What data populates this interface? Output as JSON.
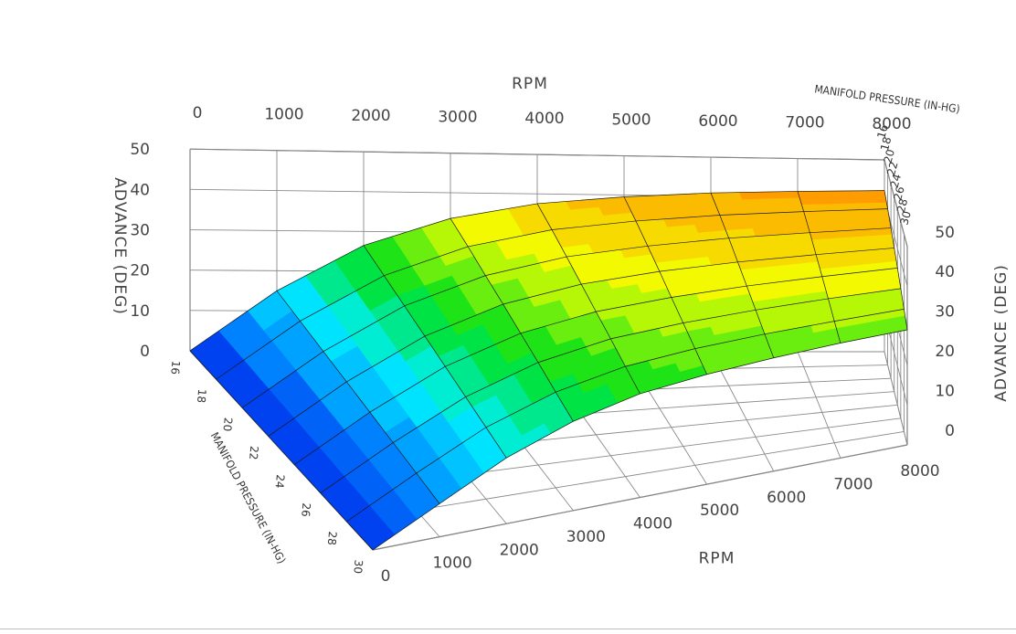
{
  "chart_data": {
    "type": "surface3d",
    "x": {
      "label": "RPM",
      "values": [
        0,
        1000,
        2000,
        3000,
        4000,
        5000,
        6000,
        7000,
        8000
      ]
    },
    "y": {
      "label": "MANIFOLD PRESSURE (IN-HG)",
      "values": [
        16,
        18,
        20,
        22,
        24,
        26,
        28,
        30
      ]
    },
    "z": {
      "label": "ADVANCE (DEG)",
      "values": [
        0,
        10,
        20,
        30,
        40,
        50
      ]
    },
    "surface": [
      [
        0,
        15,
        26.5,
        33.5,
        37.5,
        39.5,
        40.8,
        41.5,
        42
      ],
      [
        0,
        14,
        25,
        32,
        36,
        38,
        39.3,
        40,
        40.5
      ],
      [
        0,
        13,
        23.5,
        30.3,
        34.3,
        36.3,
        37.6,
        38.3,
        38.8
      ],
      [
        0,
        12,
        22,
        28.7,
        32.5,
        34.5,
        35.7,
        36.4,
        36.9
      ],
      [
        0,
        11,
        20.5,
        27,
        30.7,
        32.6,
        33.8,
        34.5,
        35
      ],
      [
        0,
        10,
        19,
        25.3,
        29,
        30.8,
        31.9,
        32.6,
        33
      ],
      [
        0,
        9,
        17.5,
        23.5,
        27.2,
        29,
        30,
        30.6,
        31
      ],
      [
        0,
        8,
        16,
        21.8,
        25.5,
        27.2,
        28.2,
        28.8,
        29
      ]
    ],
    "colorscale": [
      "#0022e8",
      "#0088ff",
      "#00f0ff",
      "#00e01a",
      "#f2ff00",
      "#ff9c00"
    ]
  }
}
